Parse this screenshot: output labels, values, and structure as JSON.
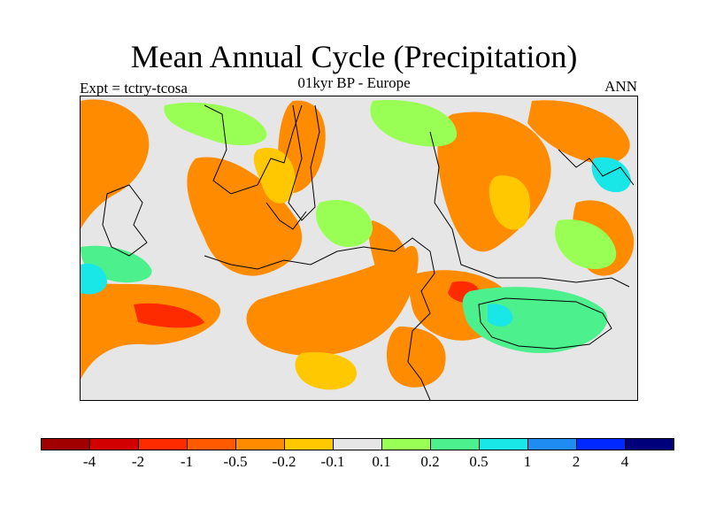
{
  "title": "Mean Annual Cycle (Precipitation)",
  "subtitle": "01kyr BP - Europe",
  "experiment": "Expt = tctry-tcosa",
  "season": "ANN",
  "colorbar": {
    "colors": [
      "#a00000",
      "#d20000",
      "#ff2b00",
      "#ff5a00",
      "#ff8c00",
      "#ffc800",
      "#e6e6e6",
      "#99ff55",
      "#4cf08c",
      "#19e6e6",
      "#1e8cf0",
      "#0028ff",
      "#00007a"
    ],
    "labels": [
      "-4",
      "-2",
      "-1",
      "-0.5",
      "-0.2",
      "-0.1",
      "0.1",
      "0.2",
      "0.5",
      "1",
      "2",
      "4"
    ]
  },
  "map_legend": {
    "background": "#e6e6e6",
    "dry_strong": "#ff8c00",
    "dry_weak": "#ffc800",
    "wet_weak": "#99ff55",
    "wet_mid": "#4cf08c",
    "wet_strong": "#19e6e6",
    "red": "#ff2b00",
    "coast": "#000000"
  }
}
